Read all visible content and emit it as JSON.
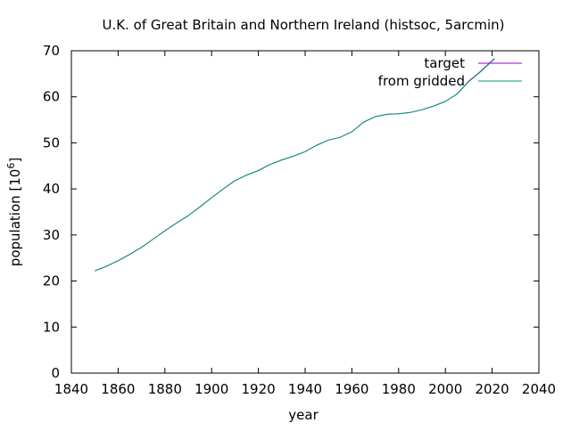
{
  "chart_data": {
    "type": "line",
    "title": "U.K. of Great Britain and Northern Ireland (histsoc, 5arcmin)",
    "xlabel": "year",
    "ylabel_main": "population [10",
    "ylabel_sup": "6",
    "ylabel_close": "]",
    "xlim": [
      1840,
      2040
    ],
    "ylim": [
      0,
      70
    ],
    "xticks": [
      1840,
      1860,
      1880,
      1900,
      1920,
      1940,
      1960,
      1980,
      2000,
      2020,
      2040
    ],
    "yticks": [
      0,
      10,
      20,
      30,
      40,
      50,
      60,
      70
    ],
    "grid": false,
    "legend_position": "top-right",
    "series": [
      {
        "name": "target",
        "color": "#9400d3",
        "x": [
          1850,
          1855,
          1860,
          1865,
          1870,
          1875,
          1880,
          1885,
          1890,
          1895,
          1900,
          1905,
          1910,
          1915,
          1920,
          1925,
          1930,
          1935,
          1940,
          1945,
          1950,
          1955,
          1960,
          1965,
          1970,
          1975,
          1980,
          1985,
          1990,
          1995,
          2000,
          2005,
          2010,
          2015,
          2021
        ],
        "y": [
          22.2,
          23.2,
          24.4,
          25.8,
          27.3,
          29.1,
          30.9,
          32.6,
          34.2,
          36.1,
          38.1,
          40.0,
          41.8,
          43.0,
          44.0,
          45.3,
          46.3,
          47.1,
          48.1,
          49.5,
          50.6,
          51.2,
          52.4,
          54.5,
          55.7,
          56.2,
          56.3,
          56.6,
          57.2,
          58.0,
          59.0,
          60.6,
          63.4,
          65.5,
          68.3
        ]
      },
      {
        "name": "from gridded",
        "color": "#009e73",
        "x": [
          1850,
          1855,
          1860,
          1865,
          1870,
          1875,
          1880,
          1885,
          1890,
          1895,
          1900,
          1905,
          1910,
          1915,
          1920,
          1925,
          1930,
          1935,
          1940,
          1945,
          1950,
          1955,
          1960,
          1965,
          1970,
          1975,
          1980,
          1985,
          1990,
          1995,
          2000,
          2005,
          2010,
          2015,
          2021
        ],
        "y": [
          22.2,
          23.2,
          24.4,
          25.8,
          27.3,
          29.1,
          30.9,
          32.6,
          34.2,
          36.1,
          38.1,
          40.0,
          41.8,
          43.0,
          44.0,
          45.3,
          46.3,
          47.1,
          48.1,
          49.5,
          50.6,
          51.2,
          52.4,
          54.5,
          55.7,
          56.2,
          56.3,
          56.6,
          57.2,
          58.0,
          59.0,
          60.6,
          63.3,
          65.4,
          68.2
        ]
      }
    ]
  }
}
